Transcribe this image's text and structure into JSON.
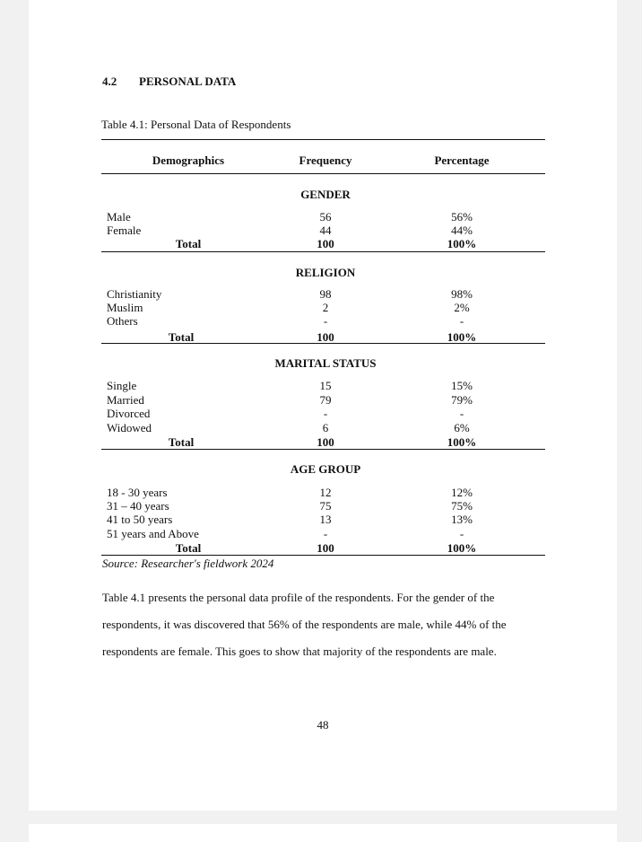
{
  "section": {
    "number": "4.2",
    "title": "PERSONAL DATA"
  },
  "caption": "Table 4.1: Personal Data of Respondents",
  "table": {
    "headers": [
      "Demographics",
      "Frequency",
      "Percentage"
    ],
    "groups": [
      {
        "title": "GENDER",
        "rows": [
          [
            "Male",
            "56",
            "56%"
          ],
          [
            "Female",
            "44",
            "44%"
          ]
        ],
        "total": [
          "Total",
          "100",
          "100%"
        ]
      },
      {
        "title": "RELIGION",
        "rows": [
          [
            "Christianity",
            "98",
            "98%"
          ],
          [
            "Muslim",
            "2",
            "2%"
          ],
          [
            "Others",
            "-",
            "-"
          ]
        ],
        "total": [
          "Total",
          "100",
          "100%"
        ]
      },
      {
        "title": "MARITAL STATUS",
        "rows": [
          [
            "Single",
            "15",
            "15%"
          ],
          [
            "Married",
            "79",
            "79%"
          ],
          [
            "Divorced",
            "-",
            "-"
          ],
          [
            "Widowed",
            "6",
            "6%"
          ]
        ],
        "total": [
          "Total",
          "100",
          "100%"
        ]
      },
      {
        "title": "AGE GROUP",
        "rows": [
          [
            "18 - 30 years",
            "12",
            "12%"
          ],
          [
            "31 – 40 years",
            "75",
            "75%"
          ],
          [
            "41 to 50 years",
            "13",
            "13%"
          ],
          [
            "51 years and Above",
            "-",
            "-"
          ]
        ],
        "total": [
          "Total",
          "100",
          "100%"
        ]
      }
    ],
    "source": "Source: Researcher's fieldwork 2024"
  },
  "paragraph": [
    "Table 4.1 presents the personal data profile of the respondents. For the gender of the",
    "respondents, it was discovered that 56% of the respondents are male, while 44% of the",
    "respondents are female. This goes to show that majority of the respondents are male."
  ],
  "page_number": "48"
}
